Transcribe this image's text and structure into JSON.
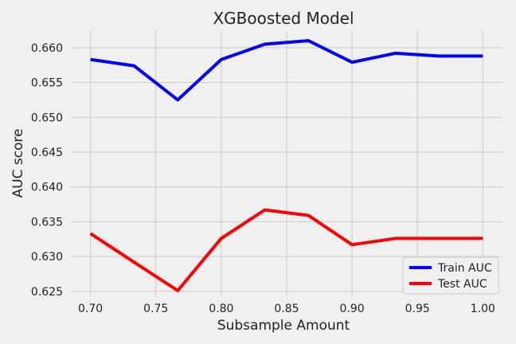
{
  "chart_data": {
    "type": "line",
    "title": "XGBoosted Model",
    "xlabel": "Subsample Amount",
    "ylabel": "AUC score",
    "x": [
      0.7,
      0.7333,
      0.7667,
      0.8,
      0.8333,
      0.8667,
      0.9,
      0.9333,
      0.9667,
      1.0
    ],
    "xlim": [
      0.685,
      1.015
    ],
    "ylim": [
      0.6243,
      0.6625
    ],
    "xticks": [
      "0.70",
      "0.75",
      "0.80",
      "0.85",
      "0.90",
      "0.95",
      "1.00"
    ],
    "xtick_values": [
      0.7,
      0.75,
      0.8,
      0.85,
      0.9,
      0.95,
      1.0
    ],
    "yticks": [
      "0.625",
      "0.630",
      "0.635",
      "0.640",
      "0.645",
      "0.650",
      "0.655",
      "0.660"
    ],
    "ytick_values": [
      0.625,
      0.63,
      0.635,
      0.64,
      0.645,
      0.65,
      0.655,
      0.66
    ],
    "grid": true,
    "legend_position": "bottom-right",
    "series": [
      {
        "name": "Train AUC",
        "color": "#0000ff",
        "values": [
          0.6583,
          0.6574,
          0.6525,
          0.6583,
          0.6605,
          0.661,
          0.6579,
          0.6592,
          0.6588,
          0.6588
        ]
      },
      {
        "name": "Test AUC",
        "color": "#ff0000",
        "values": [
          0.6333,
          0.6292,
          0.6251,
          0.6326,
          0.6367,
          0.6359,
          0.6317,
          0.6326,
          0.6326,
          0.6326
        ]
      }
    ]
  }
}
